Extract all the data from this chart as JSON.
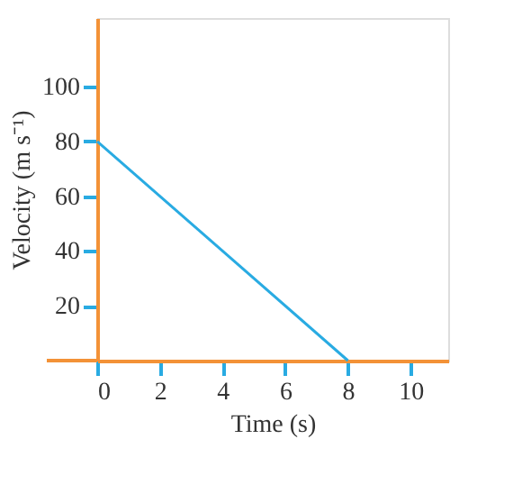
{
  "chart_data": {
    "type": "line",
    "xlabel": "Time (s)",
    "ylabel": "Velocity (m s⁻¹)",
    "x": [
      0,
      8
    ],
    "series": [
      {
        "color": "#29abe2",
        "values": [
          80,
          0
        ]
      }
    ],
    "xlim": [
      0,
      11.2
    ],
    "ylim": [
      0,
      125
    ],
    "xticks": [
      0,
      2,
      4,
      6,
      8,
      10
    ],
    "yticks": [
      20,
      40,
      60,
      80,
      100
    ],
    "grid": false,
    "marker": "none",
    "line_style": "solid"
  }
}
